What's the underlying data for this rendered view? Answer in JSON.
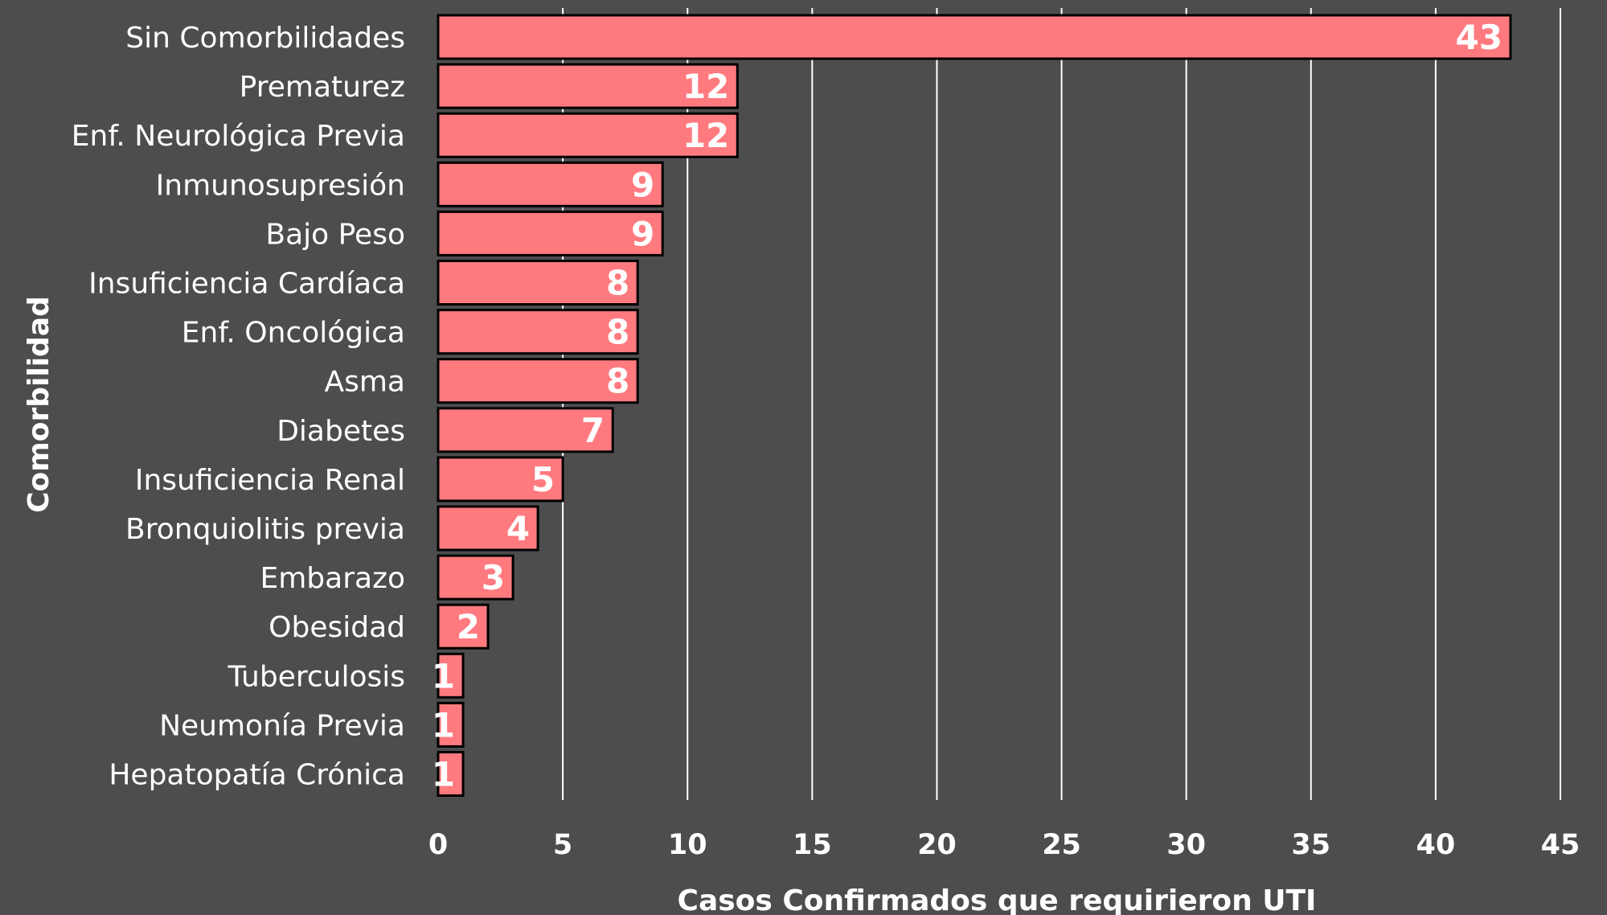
{
  "colors": {
    "background": "#4d4d4d",
    "bar_fill": "#ff7a7f",
    "bar_stroke": "#000000",
    "text": "#ffffff",
    "gridline": "#ffffff"
  },
  "chart_data": {
    "type": "bar",
    "orientation": "horizontal",
    "title": "",
    "xlabel": "Casos Confirmados que requirieron UTI",
    "ylabel": "Comorbilidad",
    "categories": [
      "Sin Comorbilidades",
      "Prematurez",
      "Enf. Neurológica Previa",
      "Inmunosupresión",
      "Bajo Peso",
      "Insuficiencia Cardíaca",
      "Enf. Oncológica",
      "Asma",
      "Diabetes",
      "Insuficiencia Renal",
      "Bronquiolitis previa",
      "Embarazo",
      "Obesidad",
      "Tuberculosis",
      "Neumonía Previa",
      "Hepatopatía Crónica"
    ],
    "values": [
      43,
      12,
      12,
      9,
      9,
      8,
      8,
      8,
      7,
      5,
      4,
      3,
      2,
      1,
      1,
      1
    ],
    "xlim": [
      0,
      45
    ],
    "xticks": [
      0,
      5,
      10,
      15,
      20,
      25,
      30,
      35,
      40,
      45
    ],
    "grid": "vertical",
    "legend": "none",
    "data_labels": true
  }
}
